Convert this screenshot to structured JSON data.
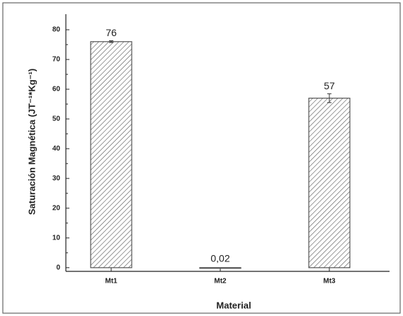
{
  "chart_data": {
    "type": "bar",
    "x_label": "Material",
    "y_label": "Saturación Magnética (JT⁻¹*Kg⁻¹)",
    "categories": [
      "Mt1",
      "Mt2",
      "Mt3"
    ],
    "values": [
      76,
      0.02,
      57
    ],
    "value_labels": [
      "76",
      "0,02",
      "57"
    ],
    "errors": [
      0.3,
      null,
      1.5
    ],
    "color": "#555555",
    "ylim": [
      -1,
      85
    ],
    "yticks": [
      0,
      10,
      20,
      30,
      40,
      50,
      60,
      70,
      80
    ]
  }
}
